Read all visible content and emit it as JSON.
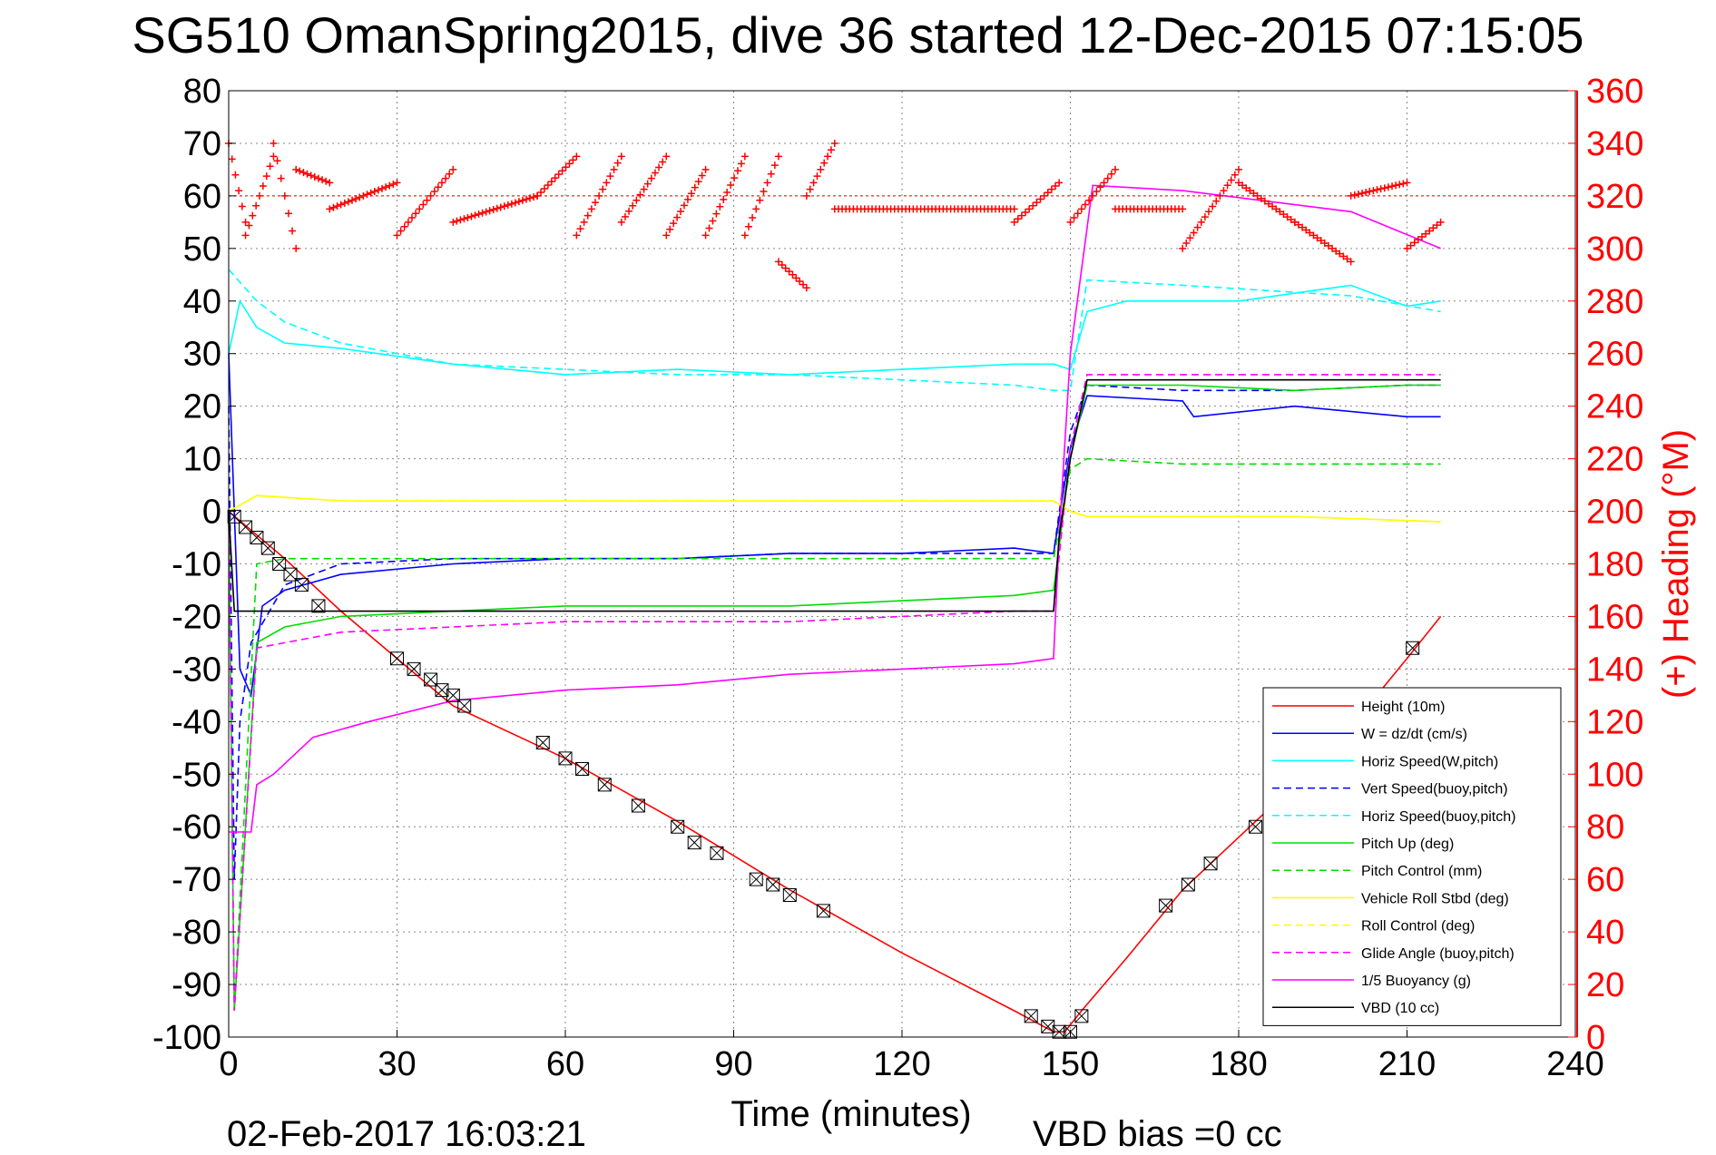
{
  "title": "SG510 OmanSpring2015, dive 36 started 12-Dec-2015 07:15:05",
  "footer": {
    "timestamp": "02-Feb-2017 16:03:21",
    "vbd_bias": "VBD bias =0 cc"
  },
  "colors": {
    "height": "#ff0000",
    "w": "#0000ff",
    "horiz": "#00ffff",
    "pitch": "#00dd00",
    "roll": "#ffff00",
    "glide": "#ff00ff",
    "buoy": "#ff00ff",
    "vbd": "#000000",
    "heading": "#ff0000"
  },
  "chart_data": {
    "type": "line",
    "title": "SG510 OmanSpring2015, dive 36 started 12-Dec-2015 07:15:05",
    "xlabel": "Time (minutes)",
    "ylabel_right": "(+) Heading (°M)",
    "xlim": [
      0,
      240
    ],
    "ylim": [
      -100,
      80
    ],
    "ylim_right": [
      0,
      360
    ],
    "xticks": [
      0,
      30,
      60,
      90,
      120,
      150,
      180,
      210,
      240
    ],
    "yticks": [
      80,
      70,
      60,
      50,
      40,
      30,
      20,
      10,
      0,
      -10,
      -20,
      -30,
      -40,
      -50,
      -60,
      -70,
      -80,
      -90,
      -100
    ],
    "yticks_right": [
      360,
      340,
      320,
      300,
      280,
      260,
      240,
      220,
      200,
      180,
      160,
      140,
      120,
      100,
      80,
      60,
      40,
      20,
      0
    ],
    "grid": true,
    "legend_position": "bottom-right",
    "series": [
      {
        "name": "Height (10m)",
        "key": "height",
        "style": "solid",
        "x": [
          0,
          10,
          20,
          40,
          60,
          80,
          100,
          120,
          140,
          147,
          149,
          152,
          160,
          170,
          180,
          190,
          200,
          210,
          216
        ],
        "y": [
          0,
          -9,
          -19,
          -37,
          -47,
          -59,
          -72,
          -84,
          -95,
          -99,
          -99,
          -95,
          -85,
          -72,
          -62,
          -52,
          -41,
          -28,
          -20
        ]
      },
      {
        "name": "W = dz/dt (cm/s)",
        "key": "w",
        "style": "solid",
        "x": [
          0,
          2,
          4,
          6,
          10,
          20,
          40,
          60,
          80,
          100,
          120,
          140,
          147,
          150,
          153,
          170,
          172,
          190,
          210,
          216
        ],
        "y": [
          30,
          -30,
          -35,
          -18,
          -15,
          -12,
          -10,
          -9,
          -9,
          -8,
          -8,
          -7,
          -8,
          12,
          22,
          21,
          18,
          20,
          18,
          18
        ]
      },
      {
        "name": "Horiz Speed(W,pitch)",
        "key": "horiz",
        "style": "solid",
        "x": [
          0,
          2,
          5,
          10,
          20,
          40,
          60,
          80,
          100,
          120,
          140,
          147,
          150,
          153,
          160,
          180,
          200,
          210,
          216
        ],
        "y": [
          30,
          40,
          35,
          32,
          31,
          28,
          26,
          27,
          26,
          27,
          28,
          28,
          27,
          38,
          40,
          40,
          43,
          39,
          40
        ]
      },
      {
        "name": "Vert Speed(buoy,pitch)",
        "key": "vert",
        "style": "dashed",
        "x": [
          0,
          1,
          2,
          4,
          10,
          20,
          40,
          60,
          80,
          100,
          120,
          140,
          147,
          150,
          153,
          170,
          190,
          210,
          216
        ],
        "y": [
          20,
          -70,
          -40,
          -25,
          -14,
          -10,
          -9,
          -9,
          -9,
          -8,
          -8,
          -8,
          -8,
          15,
          24,
          23,
          23,
          24,
          24
        ]
      },
      {
        "name": "Horiz Speed(buoy,pitch)",
        "key": "horizb",
        "style": "dashed",
        "x": [
          0,
          5,
          10,
          20,
          40,
          60,
          80,
          100,
          120,
          140,
          147,
          150,
          153,
          170,
          200,
          216
        ],
        "y": [
          46,
          40,
          36,
          32,
          28,
          27,
          26,
          26,
          25,
          24,
          23,
          23,
          44,
          43,
          41,
          38
        ]
      },
      {
        "name": "Pitch Up (deg)",
        "key": "pitch",
        "style": "solid",
        "x": [
          0,
          1,
          5,
          10,
          20,
          40,
          60,
          80,
          100,
          120,
          140,
          147,
          150,
          153,
          170,
          190,
          210,
          216
        ],
        "y": [
          0,
          -95,
          -25,
          -22,
          -20,
          -19,
          -18,
          -18,
          -18,
          -17,
          -16,
          -15,
          10,
          24,
          24,
          23,
          24,
          24
        ]
      },
      {
        "name": "Pitch Control (mm)",
        "key": "pitchc",
        "style": "dashed",
        "x": [
          0,
          1,
          5,
          10,
          20,
          60,
          100,
          140,
          147,
          150,
          153,
          170,
          200,
          216
        ],
        "y": [
          0,
          -95,
          -10,
          -9,
          -9,
          -9,
          -9,
          -9,
          -9,
          8,
          10,
          9,
          9,
          9
        ]
      },
      {
        "name": "Vehicle Roll Stbd (deg)",
        "key": "roll",
        "style": "solid",
        "x": [
          0,
          5,
          20,
          60,
          100,
          140,
          147,
          150,
          153,
          170,
          190,
          216
        ],
        "y": [
          0,
          3,
          2,
          2,
          2,
          2,
          2,
          0,
          -1,
          -1,
          -1,
          -2
        ]
      },
      {
        "name": "Roll Control (deg)",
        "key": "rollc",
        "style": "dashed",
        "x": [
          0,
          5,
          20,
          60,
          100,
          140,
          147,
          150,
          153,
          170,
          190,
          216
        ],
        "y": [
          0,
          3,
          2,
          2,
          2,
          2,
          2,
          0,
          -1,
          -1,
          -1,
          -2
        ]
      },
      {
        "name": "Glide Angle (buoy,pitch)",
        "key": "glide",
        "style": "dashed",
        "x": [
          0,
          1,
          5,
          10,
          20,
          40,
          60,
          80,
          100,
          120,
          140,
          147,
          150,
          153,
          170,
          190,
          216
        ],
        "y": [
          0,
          -95,
          -26,
          -25,
          -23,
          -22,
          -21,
          -21,
          -21,
          -20,
          -19,
          -19,
          12,
          26,
          26,
          26,
          26
        ]
      },
      {
        "name": "1/5 Buoyancy (g)",
        "key": "buoy",
        "style": "solid",
        "x": [
          0,
          1,
          4,
          5,
          8,
          15,
          25,
          40,
          60,
          80,
          100,
          120,
          140,
          147,
          148,
          150,
          154,
          170,
          200,
          216
        ],
        "y": [
          -61,
          -61,
          -61,
          -52,
          -50,
          -43,
          -40,
          -36,
          -34,
          -33,
          -31,
          -30,
          -29,
          -28,
          -5,
          30,
          62,
          61,
          57,
          50
        ]
      },
      {
        "name": "VBD (10 cc)",
        "key": "vbd",
        "style": "solid",
        "x": [
          0,
          1,
          5,
          20,
          60,
          100,
          140,
          147,
          148,
          150,
          153,
          170,
          200,
          216
        ],
        "y": [
          0,
          -19,
          -19,
          -19,
          -19,
          -19,
          -19,
          -19,
          -5,
          10,
          25,
          25,
          25,
          25
        ]
      }
    ],
    "heading": {
      "name": "(+) Heading",
      "segments": [
        {
          "x0": 0,
          "x1": 3,
          "h0": 340,
          "h1": 310
        },
        {
          "x0": 3,
          "x1": 8,
          "h0": 305,
          "h1": 335
        },
        {
          "x0": 8,
          "x1": 12,
          "h0": 340,
          "h1": 300
        },
        {
          "x0": 12,
          "x1": 18,
          "h0": 330,
          "h1": 325
        },
        {
          "x0": 18,
          "x1": 30,
          "h0": 315,
          "h1": 325
        },
        {
          "x0": 30,
          "x1": 40,
          "h0": 305,
          "h1": 330
        },
        {
          "x0": 40,
          "x1": 55,
          "h0": 310,
          "h1": 320
        },
        {
          "x0": 55,
          "x1": 62,
          "h0": 320,
          "h1": 335
        },
        {
          "x0": 62,
          "x1": 70,
          "h0": 305,
          "h1": 335
        },
        {
          "x0": 70,
          "x1": 78,
          "h0": 310,
          "h1": 335
        },
        {
          "x0": 78,
          "x1": 85,
          "h0": 305,
          "h1": 330
        },
        {
          "x0": 85,
          "x1": 92,
          "h0": 305,
          "h1": 335
        },
        {
          "x0": 92,
          "x1": 98,
          "h0": 305,
          "h1": 335
        },
        {
          "x0": 98,
          "x1": 103,
          "h0": 295,
          "h1": 285
        },
        {
          "x0": 103,
          "x1": 108,
          "h0": 320,
          "h1": 340
        },
        {
          "x0": 108,
          "x1": 140,
          "h0": 315,
          "h1": 315
        },
        {
          "x0": 140,
          "x1": 148,
          "h0": 310,
          "h1": 325
        },
        {
          "x0": 150,
          "x1": 158,
          "h0": 310,
          "h1": 330
        },
        {
          "x0": 158,
          "x1": 170,
          "h0": 315,
          "h1": 315
        },
        {
          "x0": 170,
          "x1": 180,
          "h0": 300,
          "h1": 330
        },
        {
          "x0": 180,
          "x1": 190,
          "h0": 325,
          "h1": 310
        },
        {
          "x0": 190,
          "x1": 200,
          "h0": 310,
          "h1": 295
        },
        {
          "x0": 200,
          "x1": 210,
          "h0": 320,
          "h1": 325
        },
        {
          "x0": 210,
          "x1": 216,
          "h0": 300,
          "h1": 310
        }
      ],
      "mean": 320
    },
    "markers": {
      "name": "sample markers on Height",
      "x": [
        1,
        3,
        5,
        7,
        9,
        11,
        13,
        16,
        30,
        33,
        36,
        38,
        40,
        42,
        56,
        60,
        63,
        67,
        73,
        80,
        83,
        87,
        94,
        97,
        100,
        106,
        143,
        146,
        148,
        150,
        152,
        167,
        171,
        175,
        183,
        211
      ],
      "y": [
        -1,
        -3,
        -5,
        -7,
        -10,
        -12,
        -14,
        -18,
        -28,
        -30,
        -32,
        -34,
        -35,
        -37,
        -44,
        -47,
        -49,
        -52,
        -56,
        -60,
        -63,
        -65,
        -70,
        -71,
        -73,
        -76,
        -96,
        -98,
        -99,
        -99,
        -96,
        -75,
        -71,
        -67,
        -60,
        -26
      ]
    }
  }
}
